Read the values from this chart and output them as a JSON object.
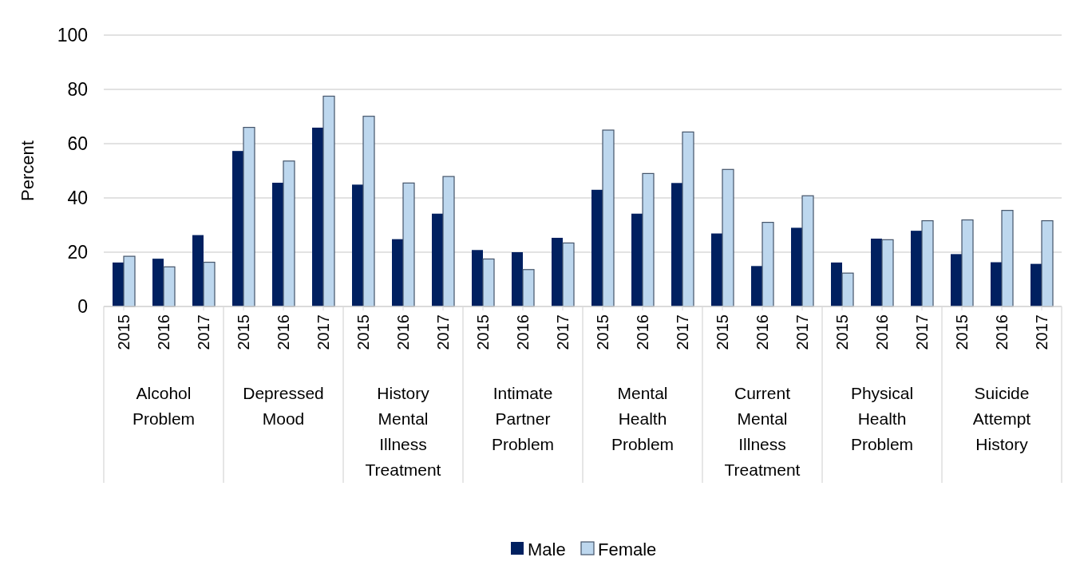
{
  "chart_data": {
    "type": "bar",
    "ylabel": "Percent",
    "categories": [
      "2015",
      "2016",
      "2017",
      "2015",
      "2016",
      "2017",
      "2015",
      "2016",
      "2017",
      "2015",
      "2016",
      "2017",
      "2015",
      "2016",
      "2017",
      "2015",
      "2016",
      "2017",
      "2015",
      "2016",
      "2017",
      "2015",
      "2016",
      "2017"
    ],
    "annotations": [
      "Alcohol Problem",
      "Depressed Mood",
      "History Mental Illness Treatment",
      "Intimate Partner Problem",
      "Mental Health Problem",
      "Current Mental Illness Treatment",
      "Physical Health Problem",
      "Suicide Attempt History"
    ],
    "series": [
      {
        "name": "Male",
        "color": "#002060",
        "values": [
          16.2,
          17.6,
          26.3,
          57.3,
          45.6,
          65.9,
          44.9,
          24.8,
          34.2,
          20.8,
          20,
          25.3,
          43,
          34.2,
          45.5,
          26.9,
          14.9,
          29,
          16.2,
          25,
          27.9,
          19.3,
          16.3,
          15.7
        ]
      },
      {
        "name": "Female",
        "color": "#bdd7ee",
        "values": [
          18.5,
          14.6,
          16.3,
          66,
          53.6,
          77.5,
          70.1,
          45.5,
          47.9,
          17.5,
          13.6,
          23.4,
          65,
          49,
          64.3,
          50.5,
          31,
          40.8,
          12.3,
          24.6,
          31.6,
          31.9,
          35.4,
          31.6
        ]
      }
    ],
    "ylim": [
      0,
      100
    ],
    "yticks": [
      0,
      20,
      40,
      60,
      80,
      100
    ],
    "grid": "y",
    "legend": "bottom"
  }
}
